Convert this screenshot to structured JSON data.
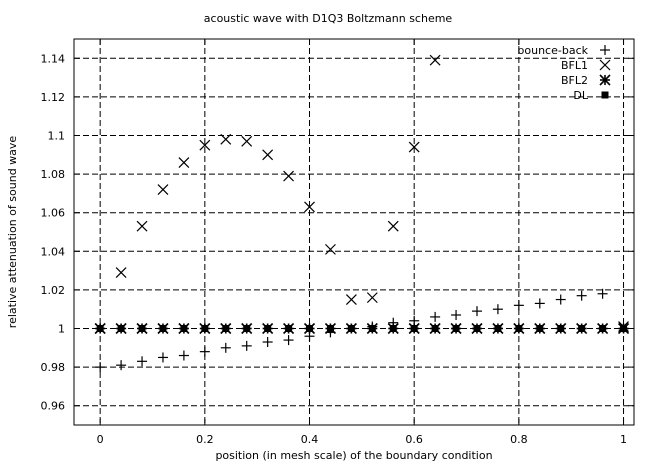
{
  "chart_data": {
    "type": "scatter",
    "title": "acoustic wave with D1Q3 Boltzmann scheme",
    "xlabel": "position (in mesh scale) of the boundary condition",
    "ylabel": "relative attenuation of sound wave",
    "xlim": [
      -0.05,
      1.02
    ],
    "ylim": [
      0.95,
      1.15
    ],
    "grid": true,
    "legend_position": "top-right",
    "xticks": [
      {
        "value": 0,
        "label": "0"
      },
      {
        "value": 0.2,
        "label": "0.2"
      },
      {
        "value": 0.4,
        "label": "0.4"
      },
      {
        "value": 0.6,
        "label": "0.6"
      },
      {
        "value": 0.8,
        "label": "0.8"
      },
      {
        "value": 1,
        "label": "1"
      }
    ],
    "yticks": [
      {
        "value": 0.96,
        "label": "0.96"
      },
      {
        "value": 0.98,
        "label": "0.98"
      },
      {
        "value": 1.0,
        "label": "1"
      },
      {
        "value": 1.02,
        "label": "1.02"
      },
      {
        "value": 1.04,
        "label": "1.04"
      },
      {
        "value": 1.06,
        "label": "1.06"
      },
      {
        "value": 1.08,
        "label": "1.08"
      },
      {
        "value": 1.1,
        "label": "1.1"
      },
      {
        "value": 1.12,
        "label": "1.12"
      },
      {
        "value": 1.14,
        "label": "1.14"
      }
    ],
    "x": [
      0,
      0.04,
      0.08,
      0.12,
      0.16,
      0.2,
      0.24,
      0.28,
      0.32,
      0.36,
      0.4,
      0.44,
      0.48,
      0.52,
      0.56,
      0.6,
      0.64,
      0.68,
      0.72,
      0.76,
      0.8,
      0.84,
      0.88,
      0.92,
      0.96,
      1.0
    ],
    "series": [
      {
        "name": "bounce-back",
        "marker": "plus",
        "values": [
          0.98,
          0.981,
          0.983,
          0.985,
          0.986,
          0.988,
          0.99,
          0.991,
          0.993,
          0.994,
          0.996,
          0.998,
          1.0,
          1.001,
          1.003,
          1.004,
          1.006,
          1.007,
          1.009,
          1.01,
          1.012,
          1.013,
          1.015,
          1.017,
          1.018,
          1.0
        ]
      },
      {
        "name": "BFL1",
        "marker": "cross",
        "values": [
          1.0,
          1.029,
          1.053,
          1.072,
          1.086,
          1.095,
          1.098,
          1.097,
          1.09,
          1.079,
          1.063,
          1.041,
          1.015,
          1.016,
          1.053,
          1.094,
          1.139,
          null,
          null,
          null,
          null,
          null,
          null,
          null,
          null,
          1.001
        ]
      },
      {
        "name": "BFL2",
        "marker": "star",
        "values": [
          1.0,
          1.0,
          1.0,
          1.0,
          1.0,
          1.0,
          1.0,
          1.0,
          1.0,
          1.0,
          1.0,
          1.0,
          1.0,
          1.0,
          1.0,
          1.0,
          1.0,
          1.0,
          1.0,
          1.0,
          1.0,
          1.0,
          1.0,
          1.0,
          1.0,
          1.0
        ]
      },
      {
        "name": "DL",
        "marker": "square",
        "values": [
          1.0,
          1.0,
          1.0,
          1.0,
          1.0,
          1.0,
          1.0,
          1.0,
          1.0,
          1.0,
          1.0,
          1.0,
          1.0,
          1.0,
          1.0,
          1.0,
          1.0,
          1.0,
          1.0,
          1.0,
          1.0,
          1.0,
          1.0,
          1.0,
          1.0,
          1.0
        ]
      }
    ]
  }
}
